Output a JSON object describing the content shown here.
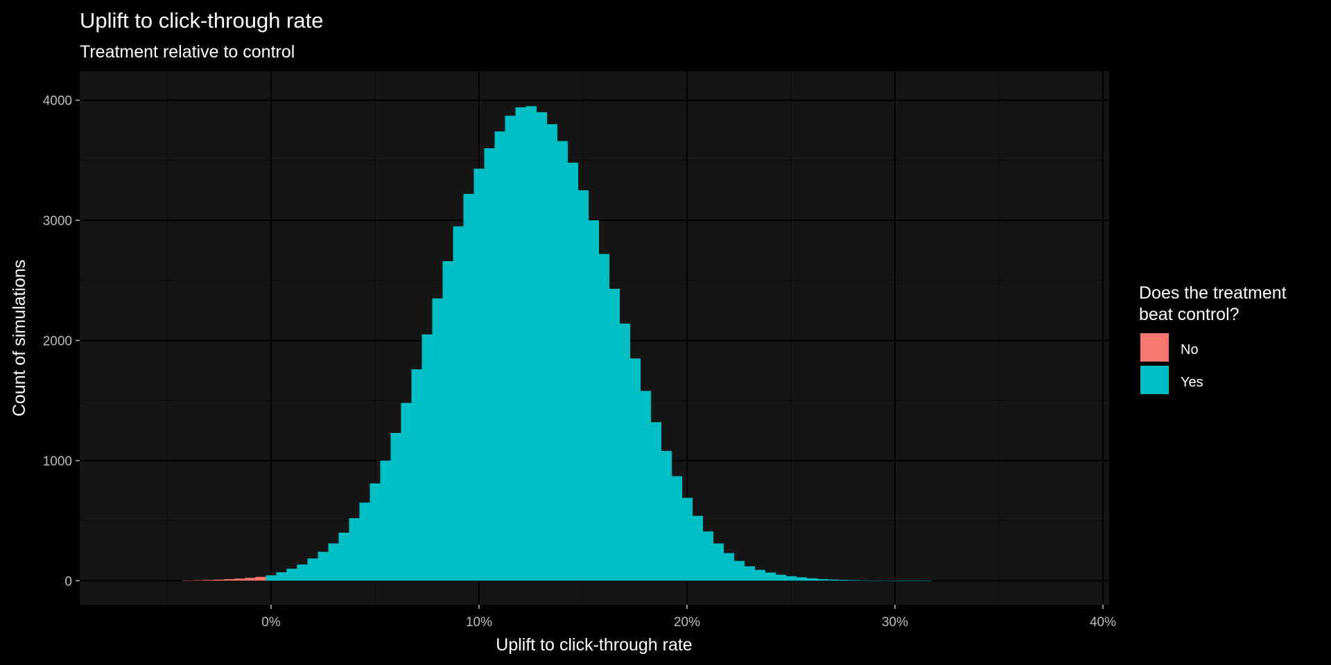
{
  "chart_data": {
    "type": "histogram",
    "title": "Uplift to click-through rate",
    "subtitle": "Treatment relative to control",
    "xlabel": "Uplift to click-through rate",
    "ylabel": "Count of simulations",
    "xlim": [
      -0.092,
      0.403
    ],
    "ylim": [
      -200,
      4240
    ],
    "x_ticks": [
      0,
      0.1,
      0.2,
      0.3,
      0.4
    ],
    "x_tick_labels": [
      "0%",
      "10%",
      "20%",
      "30%",
      "40%"
    ],
    "y_ticks": [
      0,
      1000,
      2000,
      3000,
      4000
    ],
    "y_tick_labels": [
      "0",
      "1000",
      "2000",
      "3000",
      "4000"
    ],
    "grid": true,
    "legend": {
      "title_lines": [
        "Does the treatment",
        "beat control?"
      ],
      "position": "right",
      "entries": [
        {
          "label": "No",
          "color": "#F8766D"
        },
        {
          "label": "Yes",
          "color": "#00BFC4"
        }
      ]
    },
    "series": [
      {
        "name": "No",
        "color": "#F8766D",
        "x": [
          -0.04,
          -0.035,
          -0.03,
          -0.025,
          -0.02,
          -0.015,
          -0.01,
          -0.005,
          0.0
        ],
        "values": [
          2,
          4,
          6,
          9,
          13,
          18,
          24,
          32,
          42
        ]
      },
      {
        "name": "Yes",
        "color": "#00BFC4",
        "x": [
          0.0,
          0.005,
          0.01,
          0.015,
          0.02,
          0.025,
          0.03,
          0.035,
          0.04,
          0.045,
          0.05,
          0.055,
          0.06,
          0.065,
          0.07,
          0.075,
          0.08,
          0.085,
          0.09,
          0.095,
          0.1,
          0.105,
          0.11,
          0.115,
          0.12,
          0.125,
          0.13,
          0.135,
          0.14,
          0.145,
          0.15,
          0.155,
          0.16,
          0.165,
          0.17,
          0.175,
          0.18,
          0.185,
          0.19,
          0.195,
          0.2,
          0.205,
          0.21,
          0.215,
          0.22,
          0.225,
          0.23,
          0.235,
          0.24,
          0.245,
          0.25,
          0.255,
          0.26,
          0.265,
          0.27,
          0.275,
          0.28,
          0.285,
          0.29,
          0.295,
          0.3,
          0.305,
          0.31,
          0.315
        ],
        "values": [
          45,
          70,
          100,
          135,
          185,
          240,
          310,
          400,
          520,
          650,
          810,
          1000,
          1230,
          1480,
          1760,
          2050,
          2350,
          2660,
          2950,
          3220,
          3430,
          3600,
          3740,
          3870,
          3940,
          3950,
          3900,
          3800,
          3660,
          3480,
          3250,
          3000,
          2720,
          2430,
          2140,
          1850,
          1580,
          1320,
          1080,
          870,
          690,
          540,
          410,
          310,
          230,
          165,
          120,
          90,
          68,
          50,
          38,
          28,
          20,
          14,
          10,
          7,
          5,
          3,
          2,
          2,
          1,
          1,
          1,
          1
        ]
      }
    ]
  }
}
